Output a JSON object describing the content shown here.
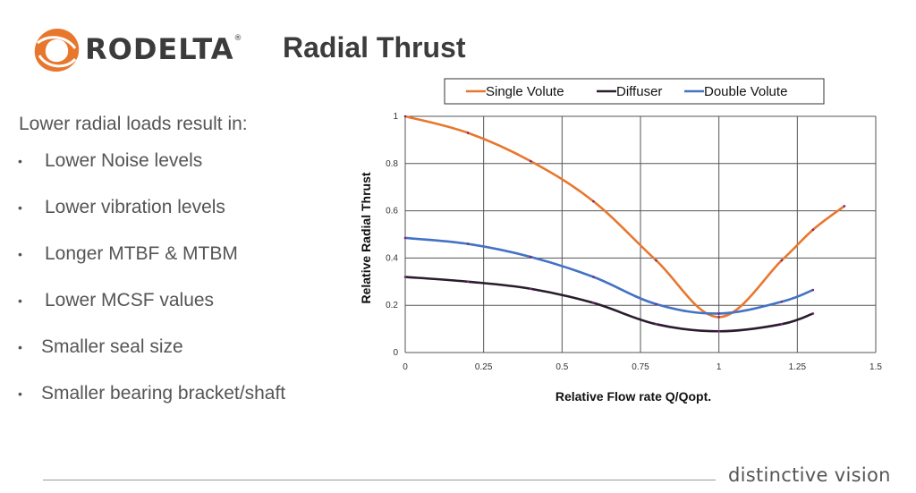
{
  "brand": {
    "name": "RODELTA",
    "registered": "®",
    "color": "#e8772e"
  },
  "slide_title": "Radial Thrust",
  "intro": "Lower radial loads result in:",
  "bullets": [
    "Lower Noise levels",
    "Lower vibration levels",
    "Longer MTBF & MTBM",
    "Lower MCSF values",
    "Smaller seal size",
    "Smaller bearing bracket/shaft"
  ],
  "footer": {
    "tagline": "distinctive vision"
  },
  "chart_data": {
    "type": "line",
    "xlabel": "Relative Flow rate Q/Qopt.",
    "ylabel": "Relative Radial Thrust",
    "xlim": [
      0,
      1.5
    ],
    "ylim": [
      0,
      1
    ],
    "xticks": [
      "0",
      "0.25",
      "0.5",
      "0.75",
      "1",
      "1.25",
      "1.5"
    ],
    "yticks": [
      "0",
      "0.2",
      "0.4",
      "0.6",
      "0.8",
      "1"
    ],
    "grid": true,
    "legend_position": "top",
    "series": [
      {
        "name": "Single Volute",
        "color": "#e8772e",
        "x": [
          0,
          0.2,
          0.4,
          0.6,
          0.8,
          1.0,
          1.2,
          1.3,
          1.4
        ],
        "y": [
          1.0,
          0.93,
          0.81,
          0.64,
          0.39,
          0.15,
          0.39,
          0.52,
          0.62
        ]
      },
      {
        "name": "Diffuser",
        "color": "#2b1b2e",
        "x": [
          0,
          0.2,
          0.4,
          0.6,
          0.8,
          1.0,
          1.2,
          1.3
        ],
        "y": [
          0.32,
          0.3,
          0.27,
          0.21,
          0.12,
          0.09,
          0.12,
          0.165
        ]
      },
      {
        "name": "Double Volute",
        "color": "#4472c4",
        "x": [
          0,
          0.2,
          0.4,
          0.6,
          0.8,
          1.0,
          1.2,
          1.3
        ],
        "y": [
          0.485,
          0.46,
          0.405,
          0.32,
          0.205,
          0.165,
          0.215,
          0.265
        ]
      }
    ]
  }
}
